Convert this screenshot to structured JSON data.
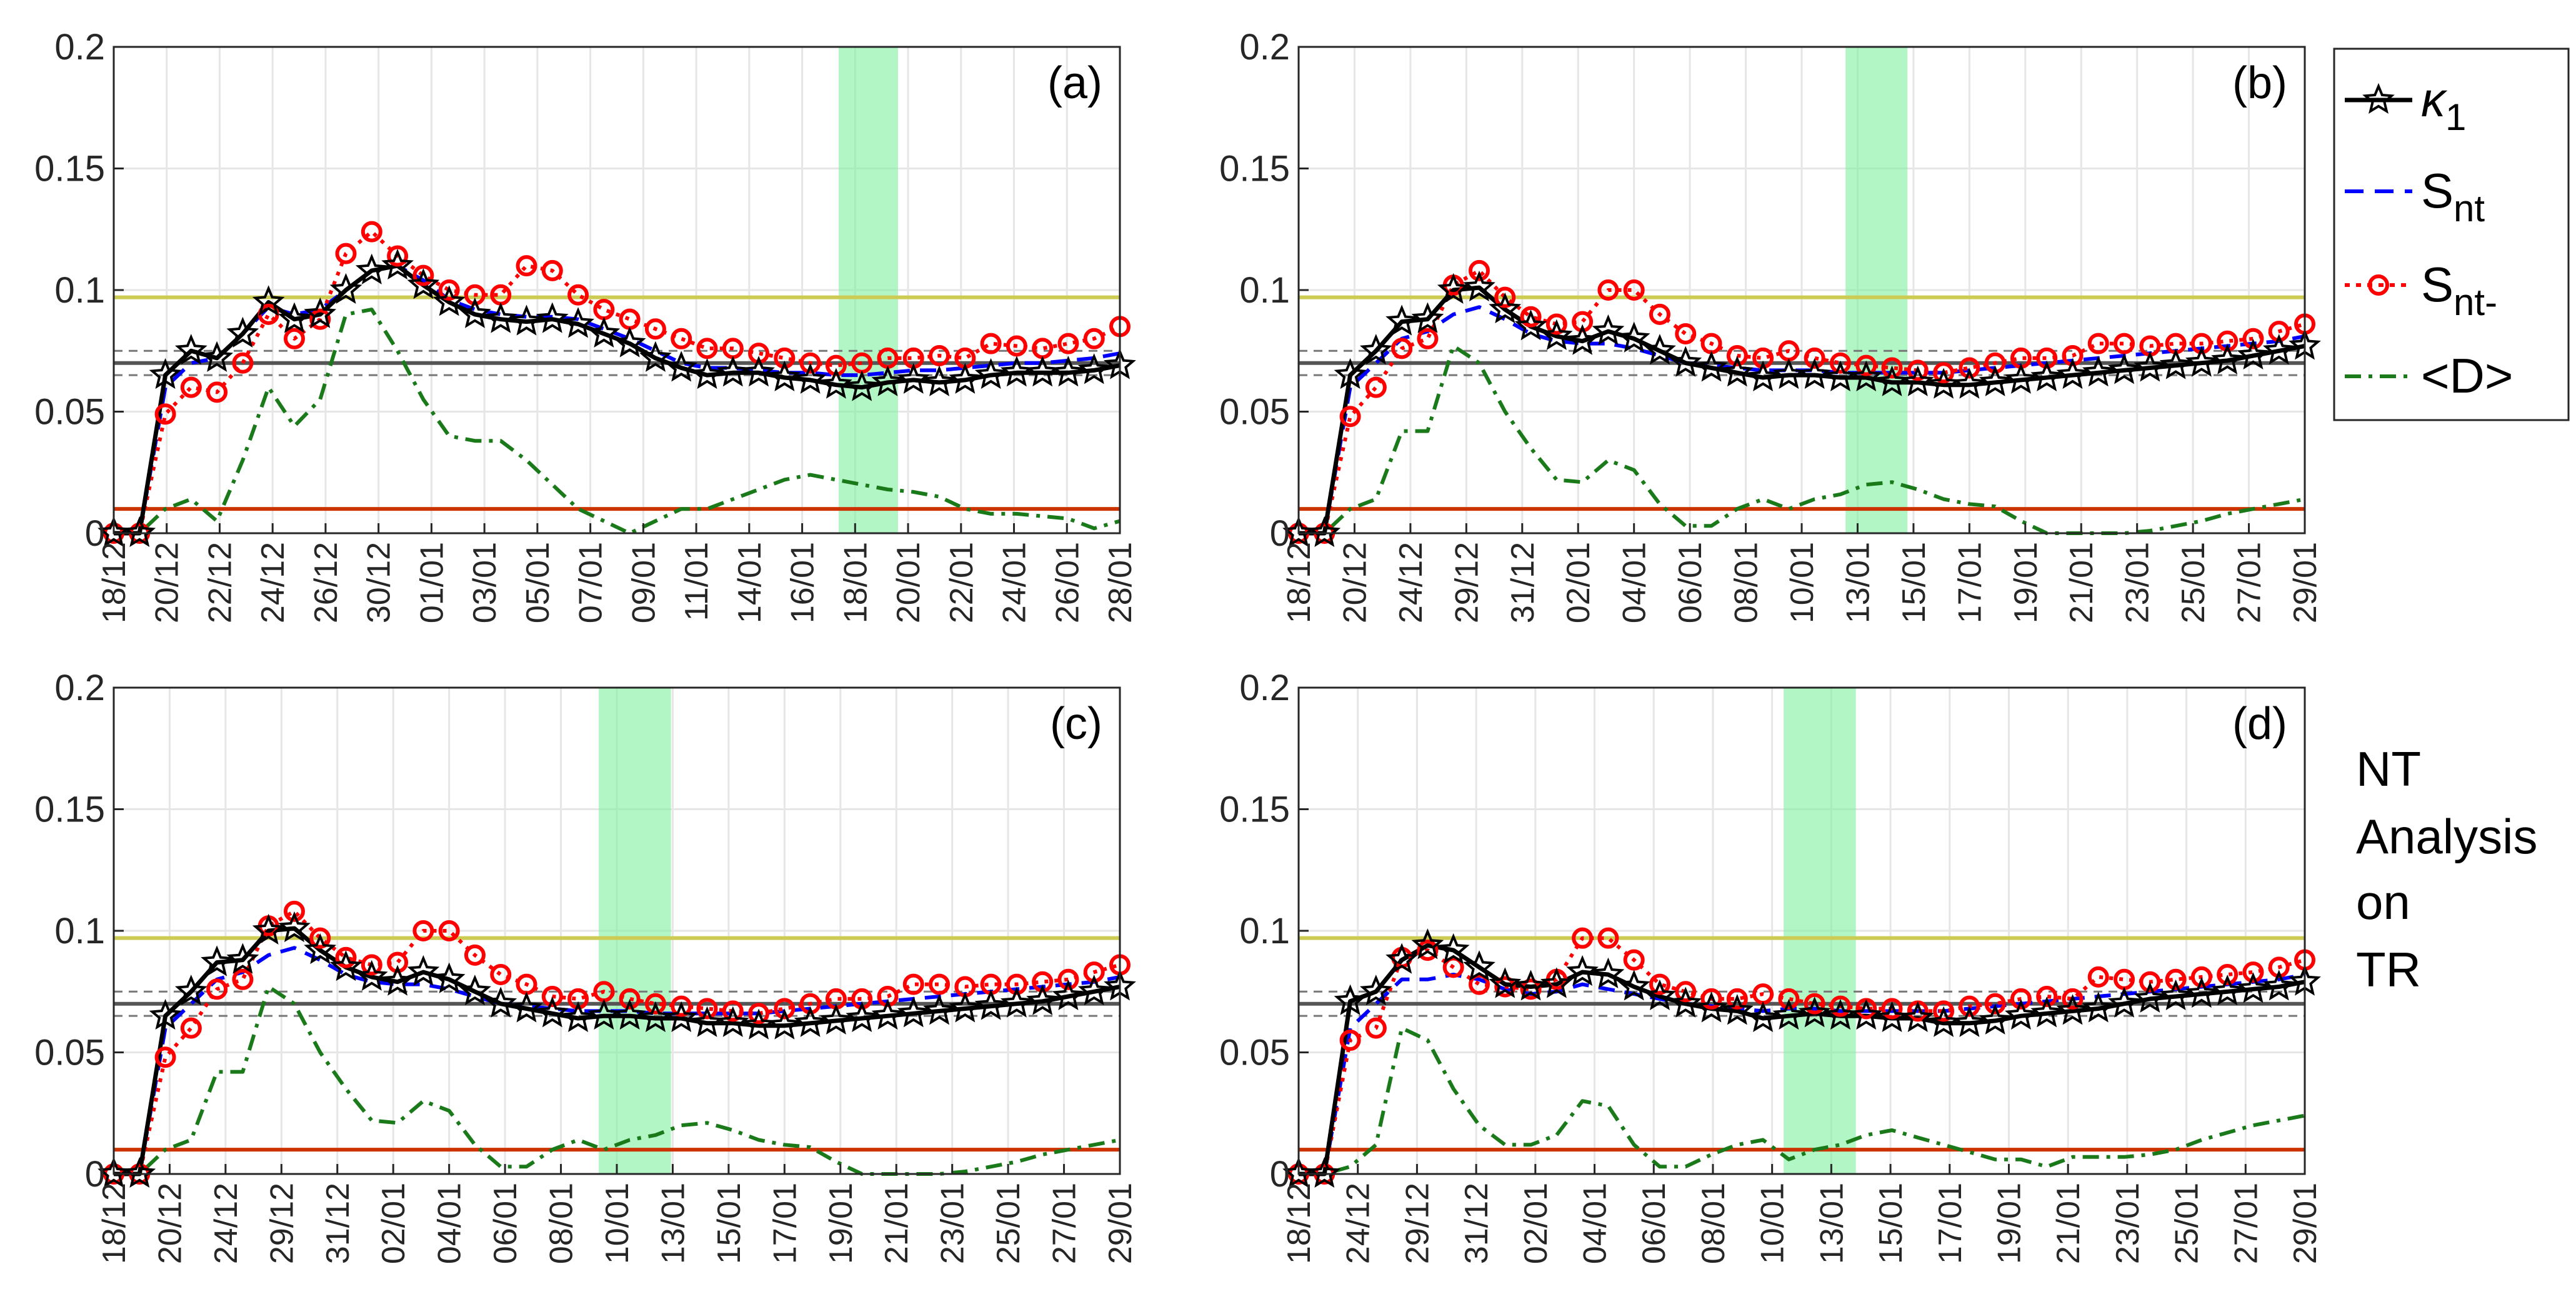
{
  "colors": {
    "kappa": "#000000",
    "snt": "#0000ff",
    "sntm": "#ff0000",
    "d": "#1a7a1a",
    "thr_yellow": "#cccc55",
    "thr_red": "#cc3300",
    "thr_gray": "#555555",
    "thr_dash": "#777777",
    "band": "#7ff0a0",
    "grid": "#e6e6e6"
  },
  "legend": {
    "entries": [
      {
        "label": "κ",
        "sub": "1",
        "series": "kappa"
      },
      {
        "label": "S",
        "sub": "nt",
        "series": "snt"
      },
      {
        "label": "S",
        "sub": "nt-",
        "series": "sntm"
      },
      {
        "label": "<D>",
        "sub": "",
        "series": "d"
      }
    ]
  },
  "side_label": {
    "lines": [
      "NT",
      "Analysis",
      "on",
      "TR"
    ]
  },
  "chart_data": [
    {
      "type": "line",
      "panel_label": "(a)",
      "ylim": [
        0,
        0.2
      ],
      "yticks": [
        0,
        0.05,
        0.1,
        0.15,
        0.2
      ],
      "ytick_labels": [
        "0",
        "0.05",
        "0.1",
        "0.15",
        "0.2"
      ],
      "xtick_labels": [
        "18/12",
        "20/12",
        "22/12",
        "24/12",
        "26/12",
        "30/12",
        "01/01",
        "03/01",
        "05/01",
        "07/01",
        "09/01",
        "11/01",
        "14/01",
        "16/01",
        "18/01",
        "20/01",
        "22/01",
        "24/01",
        "26/01",
        "28/01"
      ],
      "n_points": 40,
      "thresholds": {
        "yellow": 0.097,
        "gray": 0.07,
        "dash_upper": 0.075,
        "dash_lower": 0.065,
        "red": 0.01
      },
      "shaded_range": [
        28.1,
        30.4
      ],
      "series": [
        {
          "name": "κ1",
          "key": "kappa",
          "values": [
            0.0,
            0.0,
            0.065,
            0.075,
            0.072,
            0.082,
            0.095,
            0.088,
            0.09,
            0.1,
            0.108,
            0.11,
            0.102,
            0.095,
            0.09,
            0.088,
            0.087,
            0.088,
            0.086,
            0.082,
            0.078,
            0.072,
            0.068,
            0.065,
            0.066,
            0.066,
            0.064,
            0.063,
            0.061,
            0.06,
            0.062,
            0.063,
            0.062,
            0.063,
            0.065,
            0.066,
            0.066,
            0.066,
            0.067,
            0.069
          ]
        },
        {
          "name": "Snt",
          "key": "snt",
          "values": [
            0.0,
            0.0,
            0.06,
            0.07,
            0.072,
            0.082,
            0.093,
            0.09,
            0.092,
            0.1,
            0.108,
            0.11,
            0.104,
            0.096,
            0.092,
            0.09,
            0.089,
            0.089,
            0.088,
            0.084,
            0.08,
            0.075,
            0.07,
            0.068,
            0.068,
            0.067,
            0.066,
            0.066,
            0.065,
            0.065,
            0.066,
            0.067,
            0.067,
            0.068,
            0.069,
            0.07,
            0.07,
            0.071,
            0.072,
            0.074
          ]
        },
        {
          "name": "Snt-",
          "key": "sntm",
          "values": [
            0.0,
            0.0,
            0.049,
            0.06,
            0.058,
            0.07,
            0.09,
            0.08,
            0.088,
            0.115,
            0.124,
            0.114,
            0.106,
            0.1,
            0.098,
            0.098,
            0.11,
            0.108,
            0.098,
            0.092,
            0.088,
            0.084,
            0.08,
            0.076,
            0.076,
            0.074,
            0.072,
            0.07,
            0.069,
            0.07,
            0.072,
            0.072,
            0.073,
            0.072,
            0.078,
            0.077,
            0.076,
            0.078,
            0.08,
            0.085
          ]
        },
        {
          "name": "<D>",
          "key": "d",
          "values": [
            0.0,
            0.0,
            0.01,
            0.014,
            0.005,
            0.03,
            0.06,
            0.044,
            0.055,
            0.09,
            0.092,
            0.075,
            0.055,
            0.04,
            0.038,
            0.038,
            0.03,
            0.02,
            0.01,
            0.005,
            0.0,
            0.005,
            0.01,
            0.01,
            0.014,
            0.018,
            0.022,
            0.024,
            0.022,
            0.02,
            0.018,
            0.017,
            0.015,
            0.01,
            0.008,
            0.008,
            0.007,
            0.006,
            0.002,
            0.005
          ]
        }
      ]
    },
    {
      "type": "line",
      "panel_label": "(b)",
      "ylim": [
        0,
        0.2
      ],
      "yticks": [
        0,
        0.05,
        0.1,
        0.15,
        0.2
      ],
      "ytick_labels": [
        "0",
        "0.05",
        "0.1",
        "0.15",
        "0.2"
      ],
      "xtick_labels": [
        "18/12",
        "20/12",
        "24/12",
        "29/12",
        "31/12",
        "02/01",
        "04/01",
        "06/01",
        "08/01",
        "10/01",
        "13/01",
        "15/01",
        "17/01",
        "19/01",
        "21/01",
        "23/01",
        "25/01",
        "27/01",
        "29/01"
      ],
      "n_points": 40,
      "thresholds": {
        "yellow": 0.097,
        "gray": 0.07,
        "dash_upper": 0.075,
        "dash_lower": 0.065,
        "red": 0.01
      },
      "shaded_range": [
        21.2,
        23.6
      ],
      "series": [
        {
          "name": "κ1",
          "key": "kappa",
          "values": [
            0.0,
            0.0,
            0.065,
            0.075,
            0.087,
            0.088,
            0.1,
            0.101,
            0.092,
            0.085,
            0.081,
            0.079,
            0.083,
            0.08,
            0.075,
            0.07,
            0.068,
            0.066,
            0.064,
            0.065,
            0.065,
            0.064,
            0.064,
            0.062,
            0.062,
            0.061,
            0.061,
            0.062,
            0.063,
            0.064,
            0.065,
            0.066,
            0.067,
            0.068,
            0.069,
            0.07,
            0.071,
            0.073,
            0.075,
            0.077
          ]
        },
        {
          "name": "Snt",
          "key": "snt",
          "values": [
            0.0,
            0.0,
            0.06,
            0.07,
            0.08,
            0.083,
            0.09,
            0.093,
            0.088,
            0.082,
            0.079,
            0.078,
            0.078,
            0.076,
            0.073,
            0.07,
            0.069,
            0.068,
            0.067,
            0.067,
            0.067,
            0.066,
            0.066,
            0.066,
            0.066,
            0.066,
            0.067,
            0.068,
            0.069,
            0.07,
            0.071,
            0.072,
            0.073,
            0.074,
            0.075,
            0.076,
            0.077,
            0.078,
            0.079,
            0.081
          ]
        },
        {
          "name": "Snt-",
          "key": "sntm",
          "values": [
            0.0,
            0.0,
            0.048,
            0.06,
            0.076,
            0.08,
            0.102,
            0.108,
            0.097,
            0.089,
            0.086,
            0.087,
            0.1,
            0.1,
            0.09,
            0.082,
            0.078,
            0.073,
            0.072,
            0.075,
            0.072,
            0.07,
            0.069,
            0.068,
            0.067,
            0.066,
            0.068,
            0.07,
            0.072,
            0.072,
            0.073,
            0.078,
            0.078,
            0.077,
            0.078,
            0.078,
            0.079,
            0.08,
            0.083,
            0.086
          ]
        },
        {
          "name": "<D>",
          "key": "d",
          "values": [
            0.0,
            0.0,
            0.01,
            0.014,
            0.042,
            0.042,
            0.077,
            0.07,
            0.05,
            0.035,
            0.022,
            0.021,
            0.03,
            0.026,
            0.012,
            0.003,
            0.003,
            0.01,
            0.014,
            0.01,
            0.014,
            0.016,
            0.02,
            0.021,
            0.018,
            0.014,
            0.012,
            0.011,
            0.005,
            0.0,
            0.0,
            0.0,
            0.0,
            0.001,
            0.003,
            0.005,
            0.008,
            0.01,
            0.012,
            0.014
          ]
        }
      ]
    },
    {
      "type": "line",
      "panel_label": "(c)",
      "ylim": [
        0,
        0.2
      ],
      "yticks": [
        0,
        0.05,
        0.1,
        0.15,
        0.2
      ],
      "ytick_labels": [
        "0",
        "0.05",
        "0.1",
        "0.15",
        "0.2"
      ],
      "xtick_labels": [
        "18/12",
        "20/12",
        "24/12",
        "29/12",
        "31/12",
        "02/01",
        "04/01",
        "06/01",
        "08/01",
        "10/01",
        "13/01",
        "15/01",
        "17/01",
        "19/01",
        "21/01",
        "23/01",
        "25/01",
        "27/01",
        "29/01"
      ],
      "n_points": 40,
      "thresholds": {
        "yellow": 0.097,
        "gray": 0.07,
        "dash_upper": 0.075,
        "dash_lower": 0.065,
        "red": 0.01
      },
      "shaded_range": [
        18.8,
        21.6
      ],
      "series": [
        {
          "name": "κ1",
          "key": "kappa",
          "values": [
            0.0,
            0.0,
            0.065,
            0.075,
            0.087,
            0.088,
            0.1,
            0.101,
            0.092,
            0.085,
            0.081,
            0.079,
            0.083,
            0.08,
            0.075,
            0.07,
            0.068,
            0.066,
            0.064,
            0.065,
            0.065,
            0.064,
            0.064,
            0.062,
            0.062,
            0.061,
            0.061,
            0.062,
            0.063,
            0.064,
            0.065,
            0.066,
            0.067,
            0.068,
            0.069,
            0.07,
            0.071,
            0.073,
            0.075,
            0.077
          ]
        },
        {
          "name": "Snt",
          "key": "snt",
          "values": [
            0.0,
            0.0,
            0.06,
            0.07,
            0.08,
            0.083,
            0.09,
            0.093,
            0.088,
            0.082,
            0.079,
            0.078,
            0.078,
            0.076,
            0.073,
            0.07,
            0.069,
            0.068,
            0.067,
            0.067,
            0.067,
            0.066,
            0.066,
            0.066,
            0.066,
            0.066,
            0.067,
            0.068,
            0.069,
            0.07,
            0.071,
            0.072,
            0.073,
            0.074,
            0.075,
            0.076,
            0.077,
            0.078,
            0.079,
            0.081
          ]
        },
        {
          "name": "Snt-",
          "key": "sntm",
          "values": [
            0.0,
            0.0,
            0.048,
            0.06,
            0.076,
            0.08,
            0.102,
            0.108,
            0.097,
            0.089,
            0.086,
            0.087,
            0.1,
            0.1,
            0.09,
            0.082,
            0.078,
            0.073,
            0.072,
            0.075,
            0.072,
            0.07,
            0.069,
            0.068,
            0.067,
            0.066,
            0.068,
            0.07,
            0.072,
            0.072,
            0.073,
            0.078,
            0.078,
            0.077,
            0.078,
            0.078,
            0.079,
            0.08,
            0.083,
            0.086
          ]
        },
        {
          "name": "<D>",
          "key": "d",
          "values": [
            0.0,
            0.0,
            0.01,
            0.014,
            0.042,
            0.042,
            0.077,
            0.07,
            0.05,
            0.035,
            0.022,
            0.021,
            0.03,
            0.026,
            0.012,
            0.003,
            0.003,
            0.01,
            0.014,
            0.01,
            0.014,
            0.016,
            0.02,
            0.021,
            0.018,
            0.014,
            0.012,
            0.011,
            0.005,
            0.0,
            0.0,
            0.0,
            0.0,
            0.001,
            0.003,
            0.005,
            0.008,
            0.01,
            0.012,
            0.014
          ]
        }
      ]
    },
    {
      "type": "line",
      "panel_label": "(d)",
      "ylim": [
        0,
        0.2
      ],
      "yticks": [
        0,
        0.05,
        0.1,
        0.15,
        0.2
      ],
      "ytick_labels": [
        "0",
        "0.05",
        "0.1",
        "0.15",
        "0.2"
      ],
      "xtick_labels": [
        "18/12",
        "24/12",
        "29/12",
        "31/12",
        "02/01",
        "04/01",
        "06/01",
        "08/01",
        "10/01",
        "13/01",
        "15/01",
        "17/01",
        "19/01",
        "21/01",
        "23/01",
        "25/01",
        "27/01",
        "29/01"
      ],
      "n_points": 40,
      "thresholds": {
        "yellow": 0.097,
        "gray": 0.07,
        "dash_upper": 0.075,
        "dash_lower": 0.065,
        "red": 0.01
      },
      "shaded_range": [
        18.8,
        21.6
      ],
      "series": [
        {
          "name": "κ1",
          "key": "kappa",
          "values": [
            0.0,
            0.0,
            0.071,
            0.075,
            0.088,
            0.094,
            0.092,
            0.085,
            0.078,
            0.077,
            0.078,
            0.083,
            0.082,
            0.077,
            0.073,
            0.07,
            0.068,
            0.067,
            0.064,
            0.065,
            0.066,
            0.065,
            0.065,
            0.064,
            0.064,
            0.062,
            0.062,
            0.063,
            0.065,
            0.066,
            0.067,
            0.068,
            0.07,
            0.072,
            0.073,
            0.074,
            0.075,
            0.076,
            0.077,
            0.079
          ]
        },
        {
          "name": "Snt",
          "key": "snt",
          "values": [
            0.0,
            0.0,
            0.06,
            0.07,
            0.08,
            0.08,
            0.082,
            0.08,
            0.076,
            0.074,
            0.075,
            0.078,
            0.076,
            0.074,
            0.072,
            0.07,
            0.069,
            0.068,
            0.067,
            0.068,
            0.068,
            0.067,
            0.067,
            0.067,
            0.067,
            0.067,
            0.068,
            0.069,
            0.07,
            0.071,
            0.072,
            0.073,
            0.074,
            0.075,
            0.076,
            0.077,
            0.078,
            0.079,
            0.08,
            0.082
          ]
        },
        {
          "name": "Snt-",
          "key": "sntm",
          "values": [
            0.0,
            0.0,
            0.055,
            0.06,
            0.089,
            0.092,
            0.085,
            0.078,
            0.077,
            0.076,
            0.08,
            0.097,
            0.097,
            0.088,
            0.078,
            0.075,
            0.072,
            0.072,
            0.074,
            0.072,
            0.07,
            0.069,
            0.068,
            0.068,
            0.067,
            0.067,
            0.069,
            0.07,
            0.072,
            0.073,
            0.072,
            0.081,
            0.08,
            0.079,
            0.08,
            0.081,
            0.082,
            0.083,
            0.085,
            0.088
          ]
        },
        {
          "name": "<D>",
          "key": "d",
          "values": [
            0.0,
            0.0,
            0.003,
            0.012,
            0.06,
            0.055,
            0.035,
            0.02,
            0.012,
            0.012,
            0.016,
            0.03,
            0.028,
            0.012,
            0.003,
            0.003,
            0.008,
            0.012,
            0.014,
            0.006,
            0.01,
            0.012,
            0.016,
            0.018,
            0.015,
            0.012,
            0.009,
            0.006,
            0.006,
            0.003,
            0.007,
            0.007,
            0.007,
            0.008,
            0.01,
            0.014,
            0.017,
            0.02,
            0.022,
            0.024
          ]
        }
      ]
    }
  ]
}
